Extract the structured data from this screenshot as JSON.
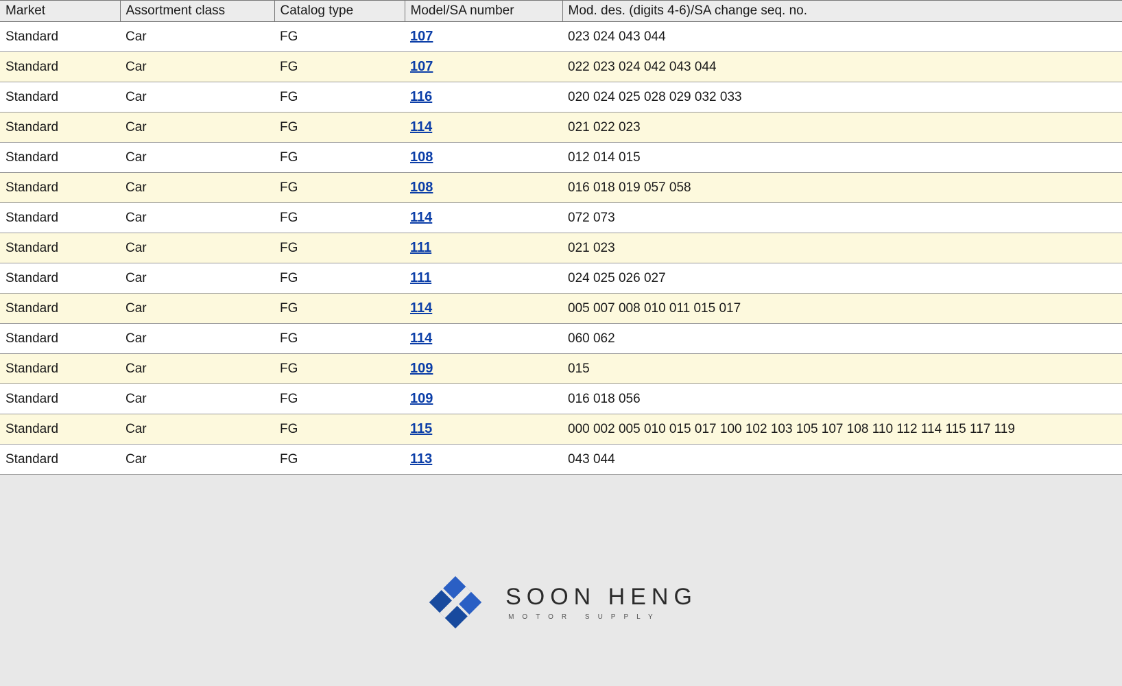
{
  "table": {
    "columns": [
      {
        "key": "market",
        "label": "Market",
        "class": "col-market"
      },
      {
        "key": "assort",
        "label": "Assortment class",
        "class": "col-assort"
      },
      {
        "key": "catalog",
        "label": "Catalog type",
        "class": "col-catalog"
      },
      {
        "key": "model",
        "label": "Model/SA number",
        "class": "col-model"
      },
      {
        "key": "mod",
        "label": "Mod. des. (digits 4-6)/SA change seq. no.",
        "class": "col-mod"
      }
    ],
    "rows": [
      {
        "market": "Standard",
        "assort": "Car",
        "catalog": "FG",
        "model": "107",
        "mod": "023 024 043 044"
      },
      {
        "market": "Standard",
        "assort": "Car",
        "catalog": "FG",
        "model": "107",
        "mod": "022 023 024 042 043 044"
      },
      {
        "market": "Standard",
        "assort": "Car",
        "catalog": "FG",
        "model": "116",
        "mod": "020 024 025 028 029 032 033"
      },
      {
        "market": "Standard",
        "assort": "Car",
        "catalog": "FG",
        "model": "114",
        "mod": "021 022 023"
      },
      {
        "market": "Standard",
        "assort": "Car",
        "catalog": "FG",
        "model": "108",
        "mod": "012 014 015"
      },
      {
        "market": "Standard",
        "assort": "Car",
        "catalog": "FG",
        "model": "108",
        "mod": "016 018 019 057 058"
      },
      {
        "market": "Standard",
        "assort": "Car",
        "catalog": "FG",
        "model": "114",
        "mod": "072 073"
      },
      {
        "market": "Standard",
        "assort": "Car",
        "catalog": "FG",
        "model": "111",
        "mod": "021 023"
      },
      {
        "market": "Standard",
        "assort": "Car",
        "catalog": "FG",
        "model": "111",
        "mod": "024 025 026 027"
      },
      {
        "market": "Standard",
        "assort": "Car",
        "catalog": "FG",
        "model": "114",
        "mod": "005 007 008 010 011 015 017"
      },
      {
        "market": "Standard",
        "assort": "Car",
        "catalog": "FG",
        "model": "114",
        "mod": "060 062"
      },
      {
        "market": "Standard",
        "assort": "Car",
        "catalog": "FG",
        "model": "109",
        "mod": "015"
      },
      {
        "market": "Standard",
        "assort": "Car",
        "catalog": "FG",
        "model": "109",
        "mod": "016 018 056"
      },
      {
        "market": "Standard",
        "assort": "Car",
        "catalog": "FG",
        "model": "115",
        "mod": "000 002 005 010 015 017 100 102 103 105 107 108 110 112 114 115 117 119"
      },
      {
        "market": "Standard",
        "assort": "Car",
        "catalog": "FG",
        "model": "113",
        "mod": "043 044"
      }
    ],
    "row_bg_odd": "#ffffff",
    "row_bg_even": "#fdf9dd",
    "border_color": "#999999",
    "header_bg": "#ececec",
    "link_color": "#0b3ea8"
  },
  "branding": {
    "name_main": "SOON HENG",
    "name_sub": "MOTOR SUPPLY",
    "logo_color_primary": "#2a5fc4",
    "logo_color_secondary": "#184a9e"
  }
}
